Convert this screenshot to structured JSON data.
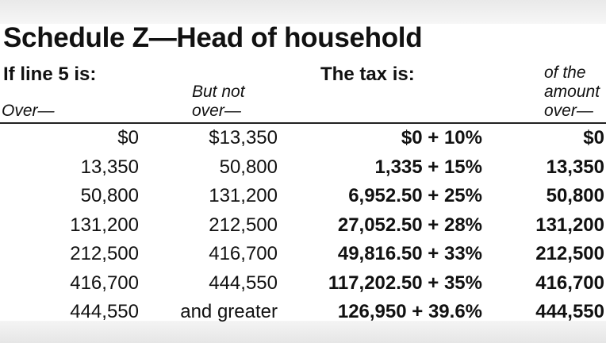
{
  "title": "Schedule Z—Head of household",
  "headers": {
    "if_line": "If line 5 is:",
    "tax_is": "The tax is:",
    "over": "Over—",
    "but_not_over_1": "But not",
    "but_not_over_2": "over—",
    "of_amount_1": "of the",
    "of_amount_2": "amount",
    "of_amount_3": "over—"
  },
  "rows": [
    {
      "over": "$0",
      "not_over": "$13,350",
      "tax": "$0 + 10%",
      "amount_over": "$0"
    },
    {
      "over": "13,350",
      "not_over": "50,800",
      "tax": "1,335 + 15%",
      "amount_over": "13,350"
    },
    {
      "over": "50,800",
      "not_over": "131,200",
      "tax": "6,952.50 + 25%",
      "amount_over": "50,800"
    },
    {
      "over": "131,200",
      "not_over": "212,500",
      "tax": "27,052.50 + 28%",
      "amount_over": "131,200"
    },
    {
      "over": "212,500",
      "not_over": "416,700",
      "tax": "49,816.50 + 33%",
      "amount_over": "212,500"
    },
    {
      "over": "416,700",
      "not_over": "444,550",
      "tax": "117,202.50 + 35%",
      "amount_over": "416,700"
    },
    {
      "over": "444,550",
      "not_over": "and greater",
      "tax": "126,950 + 39.6%",
      "amount_over": "444,550"
    }
  ]
}
